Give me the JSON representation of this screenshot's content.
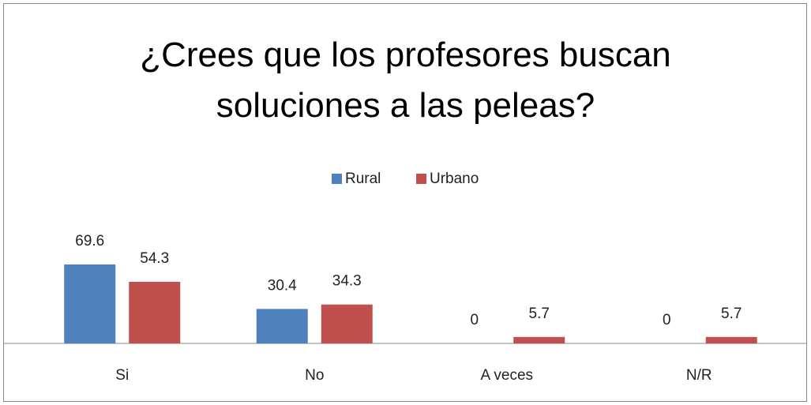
{
  "chart_data": {
    "type": "bar",
    "title": "¿Crees que los profesores buscan soluciones a las peleas?",
    "categories": [
      "Si",
      "No",
      "A veces",
      "N/R"
    ],
    "series": [
      {
        "name": "Rural",
        "color": "#4f81bd",
        "values": [
          69.6,
          30.4,
          0,
          0
        ]
      },
      {
        "name": "Urbano",
        "color": "#c0504d",
        "values": [
          54.3,
          34.3,
          5.7,
          5.7
        ]
      }
    ]
  }
}
